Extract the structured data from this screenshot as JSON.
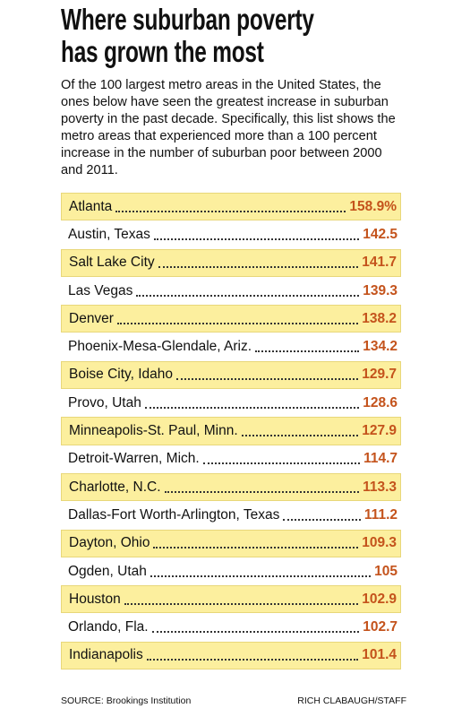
{
  "header": {
    "title_lines": [
      "Where suburban poverty",
      "has grown the most"
    ],
    "intro": "Of the 100 largest metro areas in the United States, the ones below have seen the greatest increase in suburban poverty in the past decade. Specifically, this list shows the metro areas that experienced more than a 100 percent increase in the number of suburban poor between 2000 and 2011."
  },
  "table": {
    "rows": [
      [
        "Atlanta",
        "158.9%"
      ],
      [
        "Austin, Texas",
        "142.5"
      ],
      [
        "Salt Lake City",
        "141.7"
      ],
      [
        "Las Vegas",
        "139.3"
      ],
      [
        "Denver",
        "138.2"
      ],
      [
        "Phoenix-Mesa-Glendale, Ariz.",
        "134.2"
      ],
      [
        "Boise City, Idaho",
        "129.7"
      ],
      [
        "Provo, Utah",
        "128.6"
      ],
      [
        "Minneapolis-St. Paul, Minn.",
        "127.9"
      ],
      [
        "Detroit-Warren, Mich.",
        "114.7"
      ],
      [
        "Charlotte, N.C.",
        "113.3"
      ],
      [
        "Dallas-Fort Worth-Arlington, Texas",
        "111.2"
      ],
      [
        "Dayton, Ohio",
        "109.3"
      ],
      [
        "Ogden, Utah",
        "105"
      ],
      [
        "Houston",
        "102.9"
      ],
      [
        "Orlando, Fla.",
        "102.7"
      ],
      [
        "Indianapolis",
        "101.4"
      ]
    ]
  },
  "footer": {
    "source": "SOURCE: Brookings Institution",
    "credit": "RICH CLABAUGH/STAFF"
  }
}
